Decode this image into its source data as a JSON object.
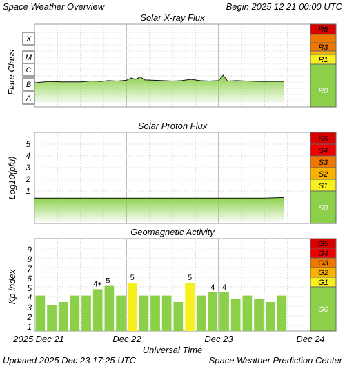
{
  "header": {
    "title": "Space Weather Overview",
    "begin": "Begin 2025 12 21 00:00 UTC"
  },
  "footer": {
    "updated": "Updated 2025 Dec 23 17:25 UTC",
    "center": "Space Weather Prediction Center"
  },
  "time_axis": {
    "label": "Universal Time",
    "ticks": [
      "2025 Dec 21",
      "Dec 22",
      "Dec 23",
      "Dec 24"
    ]
  },
  "colors": {
    "fill_green": "#8cd04a",
    "bar_green": "#8cd04a",
    "bar_yellow": "#f7f01e",
    "r5": "#d90000",
    "r4": "#f00000",
    "r3": "#f07800",
    "r2": "#f7b300",
    "r1": "#f7f01e",
    "r0": "#8cd04a",
    "grid": "#c8c8c8"
  },
  "chart_data": [
    {
      "type": "line",
      "title": "Solar X-ray Flux",
      "ylabel": "Flare Class",
      "ytick_labels": [
        "X",
        "M",
        "C",
        "B",
        "A"
      ],
      "scale_labels": [
        "R5",
        "R3",
        "R1",
        "R0"
      ],
      "x_days": [
        0.0,
        0.15,
        0.3,
        0.5,
        0.62,
        0.72,
        0.8,
        0.9,
        1.0,
        1.05,
        1.1,
        1.15,
        1.2,
        1.3,
        1.4,
        1.5,
        1.6,
        1.7,
        1.8,
        1.9,
        2.0,
        2.05,
        2.1,
        2.2,
        2.3,
        2.45,
        2.6,
        2.71
      ],
      "flux_w_m2": [
        1.1e-07,
        1.4e-07,
        1.3e-07,
        1.3e-07,
        1.5e-07,
        1.4e-07,
        1.6e-07,
        1.5e-07,
        1.7e-07,
        2.5e-07,
        2e-07,
        3e-07,
        1.8e-07,
        1.7e-07,
        1.6e-07,
        1.5e-07,
        1.6e-07,
        2e-07,
        1.6e-07,
        1.5e-07,
        1.6e-07,
        4e-07,
        1.5e-07,
        1.6e-07,
        1.5e-07,
        1.4e-07,
        1.4e-07,
        1.4e-07
      ]
    },
    {
      "type": "line",
      "title": "Solar Proton Flux",
      "ylabel": "Log10(pfu)",
      "ytick_labels": [
        "5",
        "4",
        "3",
        "2",
        "1"
      ],
      "scale_labels": [
        "S5",
        "S4",
        "S3",
        "S2",
        "S1",
        "S0"
      ],
      "x_days": [
        0.0,
        0.5,
        1.0,
        1.5,
        2.0,
        2.5,
        2.71
      ],
      "log10_pfu": [
        -0.6,
        -0.6,
        -0.6,
        -0.6,
        -0.6,
        -0.6,
        -0.55
      ]
    },
    {
      "type": "bar",
      "title": "Geomagnetic Activity",
      "ylabel": "Kp index",
      "ytick_labels": [
        "9",
        "8",
        "7",
        "6",
        "5",
        "4",
        "3",
        "2",
        "1"
      ],
      "scale_labels": [
        "G5",
        "G4",
        "G3",
        "G2",
        "G1",
        "G0"
      ],
      "ylim": [
        0,
        9.8
      ],
      "values": [
        3.67,
        2.67,
        3.0,
        3.67,
        3.67,
        4.33,
        4.67,
        3.67,
        5.0,
        3.67,
        3.67,
        3.67,
        3.0,
        5.0,
        3.67,
        4.0,
        4.0,
        3.33,
        3.67,
        3.33,
        3.0,
        3.67
      ],
      "labels": [
        "",
        "",
        "",
        "",
        "",
        "4+",
        "5-",
        "",
        "5",
        "",
        "",
        "",
        "",
        "5",
        "",
        "4",
        "4",
        "",
        "",
        "",
        "",
        ""
      ],
      "highlight": [
        false,
        false,
        false,
        false,
        false,
        false,
        false,
        false,
        true,
        false,
        false,
        false,
        false,
        true,
        false,
        false,
        false,
        false,
        false,
        false,
        false,
        false
      ]
    }
  ]
}
